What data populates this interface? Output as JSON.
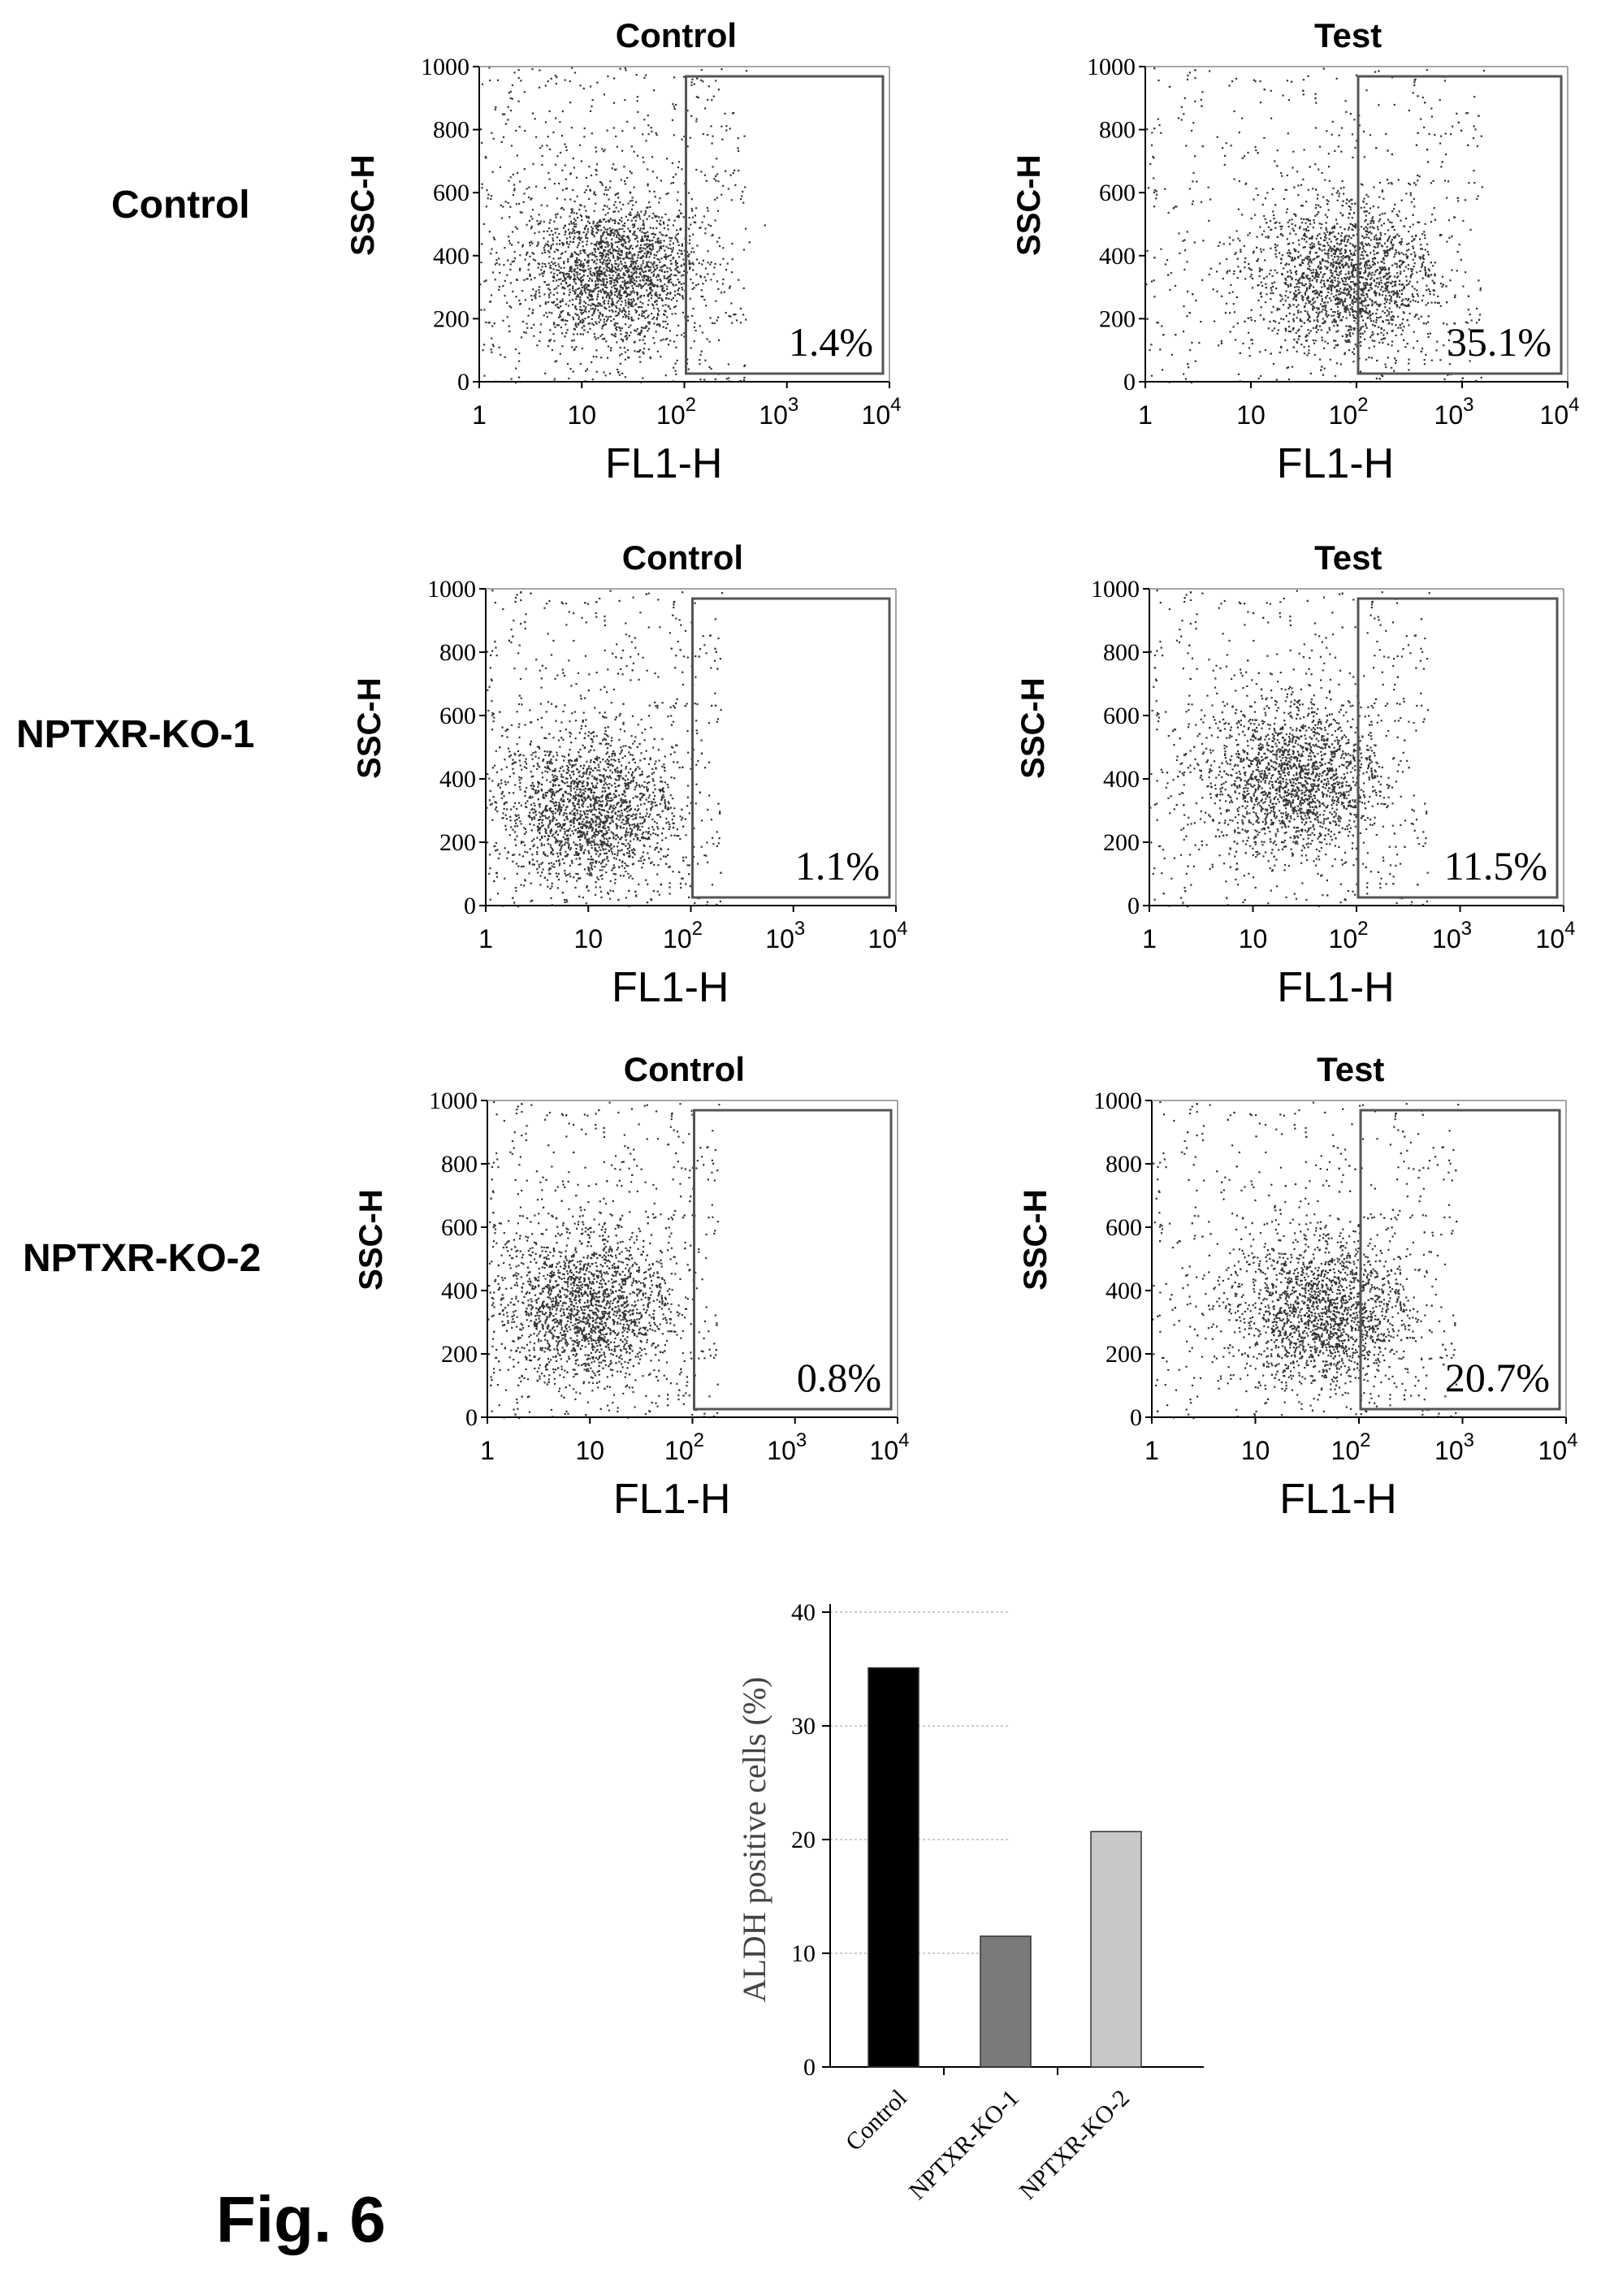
{
  "figure_label": "Fig. 6",
  "chart_data": [
    {
      "type": "scatter",
      "row_label": "Control",
      "title": "Control",
      "xlabel": "FL1-H",
      "ylabel": "SSC-H",
      "x_scale": "log",
      "xlim": [
        1,
        10000
      ],
      "ylim": [
        0,
        1000
      ],
      "x_tick_labels": [
        "1",
        "10",
        "10",
        "10",
        "10"
      ],
      "x_tick_exps": [
        "",
        "",
        "2",
        "3",
        "4"
      ],
      "y_tick_labels": [
        "0",
        "200",
        "400",
        "600",
        "800",
        "1000"
      ],
      "gate": {
        "x_range": [
          100,
          10000
        ],
        "y_range": [
          0,
          1000
        ],
        "percent_label": "1.4%",
        "percent": 1.4
      },
      "cluster": {
        "center_x": 20,
        "center_y": 350
      }
    },
    {
      "type": "scatter",
      "row_label": "",
      "title": "Test",
      "xlabel": "FL1-H",
      "ylabel": "SSC-H",
      "x_scale": "log",
      "xlim": [
        1,
        10000
      ],
      "ylim": [
        0,
        1000
      ],
      "x_tick_labels": [
        "1",
        "10",
        "10",
        "10",
        "10"
      ],
      "x_tick_exps": [
        "",
        "",
        "2",
        "3",
        "4"
      ],
      "y_tick_labels": [
        "0",
        "200",
        "400",
        "600",
        "800",
        "1000"
      ],
      "gate": {
        "x_range": [
          100,
          10000
        ],
        "y_range": [
          0,
          1000
        ],
        "percent_label": "35.1%",
        "percent": 35.1
      },
      "cluster": {
        "center_x": 80,
        "center_y": 330
      }
    },
    {
      "type": "scatter",
      "row_label": "NPTXR-KO-1",
      "title": "Control",
      "xlabel": "FL1-H",
      "ylabel": "SSC-H",
      "x_scale": "log",
      "xlim": [
        1,
        10000
      ],
      "ylim": [
        0,
        1000
      ],
      "x_tick_labels": [
        "1",
        "10",
        "10",
        "10",
        "10"
      ],
      "x_tick_exps": [
        "",
        "",
        "2",
        "3",
        "4"
      ],
      "y_tick_labels": [
        "0",
        "200",
        "400",
        "600",
        "800",
        "1000"
      ],
      "gate": {
        "x_range": [
          100,
          10000
        ],
        "y_range": [
          0,
          1000
        ],
        "percent_label": "1.1%",
        "percent": 1.1
      },
      "cluster": {
        "center_x": 10,
        "center_y": 300
      }
    },
    {
      "type": "scatter",
      "row_label": "",
      "title": "Test",
      "xlabel": "FL1-H",
      "ylabel": "SSC-H",
      "x_scale": "log",
      "xlim": [
        1,
        10000
      ],
      "ylim": [
        0,
        1000
      ],
      "x_tick_labels": [
        "1",
        "10",
        "10",
        "10",
        "10"
      ],
      "x_tick_exps": [
        "",
        "",
        "2",
        "3",
        "4"
      ],
      "y_tick_labels": [
        "0",
        "200",
        "400",
        "600",
        "800",
        "1000"
      ],
      "gate": {
        "x_range": [
          100,
          10000
        ],
        "y_range": [
          0,
          1000
        ],
        "percent_label": "11.5%",
        "percent": 11.5
      },
      "cluster": {
        "center_x": 25,
        "center_y": 400
      }
    },
    {
      "type": "scatter",
      "row_label": "NPTXR-KO-2",
      "title": "Control",
      "xlabel": "FL1-H",
      "ylabel": "SSC-H",
      "x_scale": "log",
      "xlim": [
        1,
        10000
      ],
      "ylim": [
        0,
        1000
      ],
      "x_tick_labels": [
        "1",
        "10",
        "10",
        "10",
        "10"
      ],
      "x_tick_exps": [
        "",
        "",
        "2",
        "3",
        "4"
      ],
      "y_tick_labels": [
        "0",
        "200",
        "400",
        "600",
        "800",
        "1000"
      ],
      "gate": {
        "x_range": [
          100,
          10000
        ],
        "y_range": [
          0,
          1000
        ],
        "percent_label": "0.8%",
        "percent": 0.8
      },
      "cluster": {
        "center_x": 9,
        "center_y": 350
      }
    },
    {
      "type": "scatter",
      "row_label": "",
      "title": "Test",
      "xlabel": "FL1-H",
      "ylabel": "SSC-H",
      "x_scale": "log",
      "xlim": [
        1,
        10000
      ],
      "ylim": [
        0,
        1000
      ],
      "x_tick_labels": [
        "1",
        "10",
        "10",
        "10",
        "10"
      ],
      "x_tick_exps": [
        "",
        "",
        "2",
        "3",
        "4"
      ],
      "y_tick_labels": [
        "0",
        "200",
        "400",
        "600",
        "800",
        "1000"
      ],
      "gate": {
        "x_range": [
          100,
          10000
        ],
        "y_range": [
          0,
          1000
        ],
        "percent_label": "20.7%",
        "percent": 20.7
      },
      "cluster": {
        "center_x": 45,
        "center_y": 330
      }
    },
    {
      "type": "bar",
      "title": "",
      "xlabel": "",
      "ylabel": "ALDH positive cells (%)",
      "categories": [
        "Control",
        "NPTXR-KO-1",
        "NPTXR-KO-2"
      ],
      "values": [
        35.1,
        11.5,
        20.7
      ],
      "ylim": [
        0,
        40
      ],
      "y_tick_labels": [
        "0",
        "10",
        "20",
        "30",
        "40"
      ],
      "grid": true,
      "colors": [
        "#000000",
        "#7a7a7a",
        "#c8c8c8"
      ]
    }
  ]
}
